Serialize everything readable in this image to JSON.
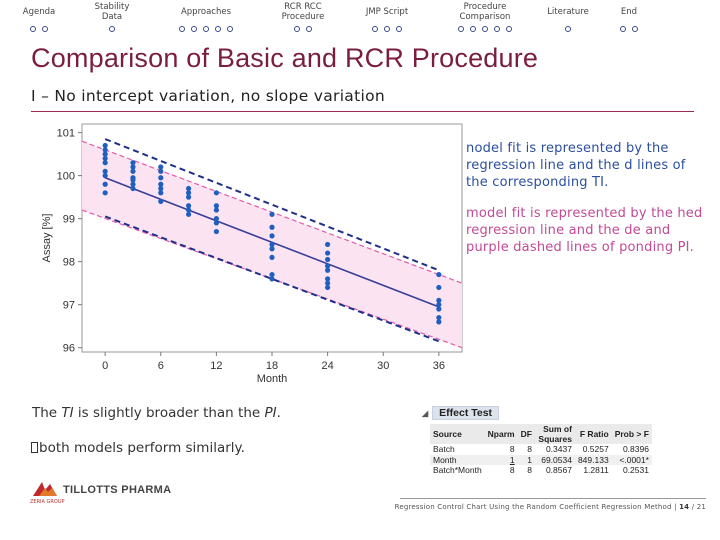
{
  "nav": {
    "sections": [
      {
        "label": "Agenda",
        "dots": 2,
        "active": -1
      },
      {
        "label": "Stability\nData",
        "dots": 1,
        "active": -1
      },
      {
        "label": "Approaches",
        "dots": 5,
        "active": -1
      },
      {
        "label": "RCR RCC\nProcedure",
        "dots": 2,
        "active": -1
      },
      {
        "label": "JMP Script",
        "dots": 3,
        "active": -1
      },
      {
        "label": "Procedure\nComparison",
        "dots": 5,
        "active": -1
      },
      {
        "label": "Literature",
        "dots": 1,
        "active": -1
      },
      {
        "label": "End",
        "dots": 2,
        "active": -1
      }
    ]
  },
  "title": "Comparison of Basic and RCR Procedure",
  "subtitle": "I – No intercept variation, no slope variation",
  "desc": {
    "blue": "nodel fit is represented by the regression line and the d lines of the corresponding TI.",
    "pink": "model fit is represented by the hed regression line and the de and purple dashed lines of ponding PI."
  },
  "notes": {
    "ti_prefix": "The ",
    "ti_term": "TI",
    "ti_middle": " is slightly broader than the ",
    "pi_term": "PI",
    "ti_end": ".",
    "models": "both models perform similarly."
  },
  "effect_test": {
    "title": "Effect Test",
    "columns": [
      "Source",
      "Nparm",
      "DF",
      "Sum of Squares",
      "F Ratio",
      "Prob > F"
    ],
    "rows": [
      [
        "Batch",
        "8",
        "8",
        "0.3437",
        "0.5257",
        "0.8396"
      ],
      [
        "Month",
        "1",
        "1",
        "69.0534",
        "849.133",
        "<.0001*"
      ],
      [
        "Batch*Month",
        "8",
        "8",
        "0.8567",
        "1.2811",
        "0.2531"
      ]
    ]
  },
  "footer": {
    "text": "Regression Control Chart Using the Random Coefficient Regression Method",
    "separator": "|",
    "page": "14",
    "total": "21",
    "page_sep": " / ",
    "logo": "TILLOTTS PHARMA",
    "logo_sub": "ZERIA GROUP"
  },
  "colors": {
    "accent": "#7a1e3c",
    "ti_band": "#1f2f8a",
    "pi_band": "#e45aa7",
    "points": "#1f5fbf",
    "regression": "#3a3f9a"
  },
  "chart_data": {
    "type": "scatter",
    "xlabel": "Month",
    "ylabel": "Assay [%]",
    "xlim": [
      -2.5,
      38.5
    ],
    "ylim": [
      95.9,
      101.2
    ],
    "xticks": [
      0,
      6,
      12,
      18,
      24,
      30,
      36
    ],
    "yticks": [
      96,
      97,
      98,
      99,
      100,
      101
    ],
    "grid": false,
    "regression": {
      "x": [
        0,
        36
      ],
      "y": [
        99.95,
        96.95
      ]
    },
    "ti_upper": {
      "x": [
        0,
        36
      ],
      "y": [
        100.85,
        97.8
      ]
    },
    "ti_lower": {
      "x": [
        0,
        36
      ],
      "y": [
        99.05,
        96.15
      ]
    },
    "pi_upper": {
      "x": [
        -2.5,
        38.5
      ],
      "y": [
        100.8,
        97.5
      ]
    },
    "pi_lower": {
      "x": [
        -2.5,
        38.5
      ],
      "y": [
        99.2,
        96.0
      ]
    },
    "points": [
      {
        "x": 0,
        "y": 100.7
      },
      {
        "x": 0,
        "y": 100.6
      },
      {
        "x": 0,
        "y": 100.5
      },
      {
        "x": 0,
        "y": 100.4
      },
      {
        "x": 0,
        "y": 100.3
      },
      {
        "x": 0,
        "y": 100.1
      },
      {
        "x": 0,
        "y": 100.0
      },
      {
        "x": 0,
        "y": 99.8
      },
      {
        "x": 0,
        "y": 99.6
      },
      {
        "x": 3,
        "y": 100.3
      },
      {
        "x": 3,
        "y": 100.2
      },
      {
        "x": 3,
        "y": 100.1
      },
      {
        "x": 3,
        "y": 99.95
      },
      {
        "x": 3,
        "y": 99.9
      },
      {
        "x": 3,
        "y": 99.8
      },
      {
        "x": 3,
        "y": 99.7
      },
      {
        "x": 6,
        "y": 100.2
      },
      {
        "x": 6,
        "y": 100.1
      },
      {
        "x": 6,
        "y": 99.95
      },
      {
        "x": 6,
        "y": 99.8
      },
      {
        "x": 6,
        "y": 99.7
      },
      {
        "x": 6,
        "y": 99.6
      },
      {
        "x": 6,
        "y": 99.4
      },
      {
        "x": 9,
        "y": 99.7
      },
      {
        "x": 9,
        "y": 99.6
      },
      {
        "x": 9,
        "y": 99.5
      },
      {
        "x": 9,
        "y": 99.3
      },
      {
        "x": 9,
        "y": 99.2
      },
      {
        "x": 9,
        "y": 99.1
      },
      {
        "x": 12,
        "y": 99.6
      },
      {
        "x": 12,
        "y": 99.3
      },
      {
        "x": 12,
        "y": 99.2
      },
      {
        "x": 12,
        "y": 99.0
      },
      {
        "x": 12,
        "y": 98.9
      },
      {
        "x": 12,
        "y": 98.7
      },
      {
        "x": 18,
        "y": 99.1
      },
      {
        "x": 18,
        "y": 98.8
      },
      {
        "x": 18,
        "y": 98.6
      },
      {
        "x": 18,
        "y": 98.4
      },
      {
        "x": 18,
        "y": 98.3
      },
      {
        "x": 18,
        "y": 98.1
      },
      {
        "x": 18,
        "y": 97.7
      },
      {
        "x": 18,
        "y": 97.6
      },
      {
        "x": 24,
        "y": 98.4
      },
      {
        "x": 24,
        "y": 98.2
      },
      {
        "x": 24,
        "y": 98.05
      },
      {
        "x": 24,
        "y": 97.9
      },
      {
        "x": 24,
        "y": 97.8
      },
      {
        "x": 24,
        "y": 97.6
      },
      {
        "x": 24,
        "y": 97.5
      },
      {
        "x": 24,
        "y": 97.4
      },
      {
        "x": 36,
        "y": 97.7
      },
      {
        "x": 36,
        "y": 97.4
      },
      {
        "x": 36,
        "y": 97.1
      },
      {
        "x": 36,
        "y": 97.0
      },
      {
        "x": 36,
        "y": 96.9
      },
      {
        "x": 36,
        "y": 96.7
      },
      {
        "x": 36,
        "y": 96.6
      }
    ]
  }
}
